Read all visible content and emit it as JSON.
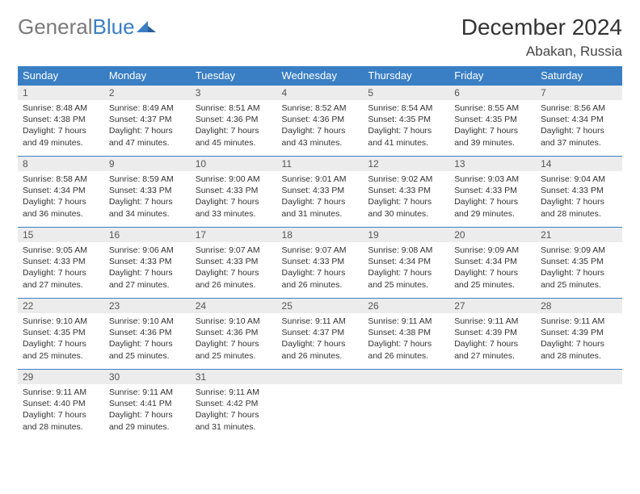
{
  "logo": {
    "part1": "General",
    "part2": "Blue"
  },
  "title": "December 2024",
  "location": "Abakan, Russia",
  "colors": {
    "header_bg": "#3a7fc4",
    "header_fg": "#ffffff",
    "date_bg": "#ececec",
    "border": "#3a7fc4",
    "text": "#333333",
    "logo_gray": "#7a7a7a",
    "logo_blue": "#3a7fc4"
  },
  "day_headers": [
    "Sunday",
    "Monday",
    "Tuesday",
    "Wednesday",
    "Thursday",
    "Friday",
    "Saturday"
  ],
  "weeks": [
    [
      {
        "d": "1",
        "sr": "Sunrise: 8:48 AM",
        "ss": "Sunset: 4:38 PM",
        "dl1": "Daylight: 7 hours",
        "dl2": "and 49 minutes."
      },
      {
        "d": "2",
        "sr": "Sunrise: 8:49 AM",
        "ss": "Sunset: 4:37 PM",
        "dl1": "Daylight: 7 hours",
        "dl2": "and 47 minutes."
      },
      {
        "d": "3",
        "sr": "Sunrise: 8:51 AM",
        "ss": "Sunset: 4:36 PM",
        "dl1": "Daylight: 7 hours",
        "dl2": "and 45 minutes."
      },
      {
        "d": "4",
        "sr": "Sunrise: 8:52 AM",
        "ss": "Sunset: 4:36 PM",
        "dl1": "Daylight: 7 hours",
        "dl2": "and 43 minutes."
      },
      {
        "d": "5",
        "sr": "Sunrise: 8:54 AM",
        "ss": "Sunset: 4:35 PM",
        "dl1": "Daylight: 7 hours",
        "dl2": "and 41 minutes."
      },
      {
        "d": "6",
        "sr": "Sunrise: 8:55 AM",
        "ss": "Sunset: 4:35 PM",
        "dl1": "Daylight: 7 hours",
        "dl2": "and 39 minutes."
      },
      {
        "d": "7",
        "sr": "Sunrise: 8:56 AM",
        "ss": "Sunset: 4:34 PM",
        "dl1": "Daylight: 7 hours",
        "dl2": "and 37 minutes."
      }
    ],
    [
      {
        "d": "8",
        "sr": "Sunrise: 8:58 AM",
        "ss": "Sunset: 4:34 PM",
        "dl1": "Daylight: 7 hours",
        "dl2": "and 36 minutes."
      },
      {
        "d": "9",
        "sr": "Sunrise: 8:59 AM",
        "ss": "Sunset: 4:33 PM",
        "dl1": "Daylight: 7 hours",
        "dl2": "and 34 minutes."
      },
      {
        "d": "10",
        "sr": "Sunrise: 9:00 AM",
        "ss": "Sunset: 4:33 PM",
        "dl1": "Daylight: 7 hours",
        "dl2": "and 33 minutes."
      },
      {
        "d": "11",
        "sr": "Sunrise: 9:01 AM",
        "ss": "Sunset: 4:33 PM",
        "dl1": "Daylight: 7 hours",
        "dl2": "and 31 minutes."
      },
      {
        "d": "12",
        "sr": "Sunrise: 9:02 AM",
        "ss": "Sunset: 4:33 PM",
        "dl1": "Daylight: 7 hours",
        "dl2": "and 30 minutes."
      },
      {
        "d": "13",
        "sr": "Sunrise: 9:03 AM",
        "ss": "Sunset: 4:33 PM",
        "dl1": "Daylight: 7 hours",
        "dl2": "and 29 minutes."
      },
      {
        "d": "14",
        "sr": "Sunrise: 9:04 AM",
        "ss": "Sunset: 4:33 PM",
        "dl1": "Daylight: 7 hours",
        "dl2": "and 28 minutes."
      }
    ],
    [
      {
        "d": "15",
        "sr": "Sunrise: 9:05 AM",
        "ss": "Sunset: 4:33 PM",
        "dl1": "Daylight: 7 hours",
        "dl2": "and 27 minutes."
      },
      {
        "d": "16",
        "sr": "Sunrise: 9:06 AM",
        "ss": "Sunset: 4:33 PM",
        "dl1": "Daylight: 7 hours",
        "dl2": "and 27 minutes."
      },
      {
        "d": "17",
        "sr": "Sunrise: 9:07 AM",
        "ss": "Sunset: 4:33 PM",
        "dl1": "Daylight: 7 hours",
        "dl2": "and 26 minutes."
      },
      {
        "d": "18",
        "sr": "Sunrise: 9:07 AM",
        "ss": "Sunset: 4:33 PM",
        "dl1": "Daylight: 7 hours",
        "dl2": "and 26 minutes."
      },
      {
        "d": "19",
        "sr": "Sunrise: 9:08 AM",
        "ss": "Sunset: 4:34 PM",
        "dl1": "Daylight: 7 hours",
        "dl2": "and 25 minutes."
      },
      {
        "d": "20",
        "sr": "Sunrise: 9:09 AM",
        "ss": "Sunset: 4:34 PM",
        "dl1": "Daylight: 7 hours",
        "dl2": "and 25 minutes."
      },
      {
        "d": "21",
        "sr": "Sunrise: 9:09 AM",
        "ss": "Sunset: 4:35 PM",
        "dl1": "Daylight: 7 hours",
        "dl2": "and 25 minutes."
      }
    ],
    [
      {
        "d": "22",
        "sr": "Sunrise: 9:10 AM",
        "ss": "Sunset: 4:35 PM",
        "dl1": "Daylight: 7 hours",
        "dl2": "and 25 minutes."
      },
      {
        "d": "23",
        "sr": "Sunrise: 9:10 AM",
        "ss": "Sunset: 4:36 PM",
        "dl1": "Daylight: 7 hours",
        "dl2": "and 25 minutes."
      },
      {
        "d": "24",
        "sr": "Sunrise: 9:10 AM",
        "ss": "Sunset: 4:36 PM",
        "dl1": "Daylight: 7 hours",
        "dl2": "and 25 minutes."
      },
      {
        "d": "25",
        "sr": "Sunrise: 9:11 AM",
        "ss": "Sunset: 4:37 PM",
        "dl1": "Daylight: 7 hours",
        "dl2": "and 26 minutes."
      },
      {
        "d": "26",
        "sr": "Sunrise: 9:11 AM",
        "ss": "Sunset: 4:38 PM",
        "dl1": "Daylight: 7 hours",
        "dl2": "and 26 minutes."
      },
      {
        "d": "27",
        "sr": "Sunrise: 9:11 AM",
        "ss": "Sunset: 4:39 PM",
        "dl1": "Daylight: 7 hours",
        "dl2": "and 27 minutes."
      },
      {
        "d": "28",
        "sr": "Sunrise: 9:11 AM",
        "ss": "Sunset: 4:39 PM",
        "dl1": "Daylight: 7 hours",
        "dl2": "and 28 minutes."
      }
    ],
    [
      {
        "d": "29",
        "sr": "Sunrise: 9:11 AM",
        "ss": "Sunset: 4:40 PM",
        "dl1": "Daylight: 7 hours",
        "dl2": "and 28 minutes."
      },
      {
        "d": "30",
        "sr": "Sunrise: 9:11 AM",
        "ss": "Sunset: 4:41 PM",
        "dl1": "Daylight: 7 hours",
        "dl2": "and 29 minutes."
      },
      {
        "d": "31",
        "sr": "Sunrise: 9:11 AM",
        "ss": "Sunset: 4:42 PM",
        "dl1": "Daylight: 7 hours",
        "dl2": "and 31 minutes."
      },
      null,
      null,
      null,
      null
    ]
  ]
}
